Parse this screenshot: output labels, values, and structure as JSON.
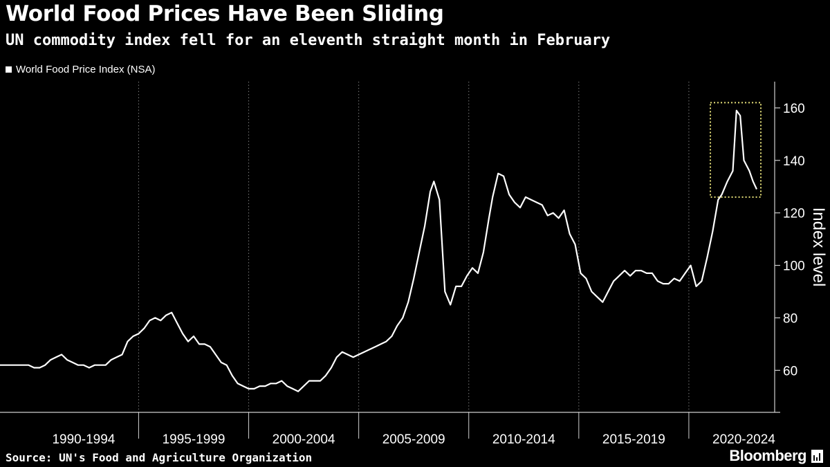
{
  "header": {
    "title": "World Food Prices Have Been Sliding",
    "subtitle": "UN commodity index fell for an eleventh straight month in February"
  },
  "legend": {
    "label": "World Food Price Index (NSA)"
  },
  "footer": {
    "source": "Source: UN's Food and Agriculture Organization",
    "brand": "Bloomberg"
  },
  "colors": {
    "background": "#000000",
    "line": "#ffffff",
    "highlight": "#e8e27a",
    "grid": "#7a7a7a"
  },
  "chart_data": {
    "type": "line",
    "title": "World Food Prices Have Been Sliding",
    "subtitle": "UN commodity index fell for an eleventh straight month in February",
    "ylabel": "Index level",
    "xlabel": "",
    "ylim": [
      44,
      170
    ],
    "xlim": [
      "1990-01",
      "2023-02"
    ],
    "y_ticks": [
      60,
      80,
      100,
      120,
      140,
      160
    ],
    "x_tick_labels": [
      "1990-1994",
      "1995-1999",
      "2000-2004",
      "2005-2009",
      "2010-2014",
      "2015-2019",
      "2020-2024"
    ],
    "grid": "vertical dotted at period boundaries",
    "legend_position": "top-left",
    "highlight": {
      "type": "dotted box",
      "x_range": [
        "2021-03",
        "2023-02"
      ],
      "y_range": [
        126,
        162
      ]
    },
    "series": [
      {
        "name": "World Food Price Index (NSA)",
        "points": [
          [
            "1990-01",
            62
          ],
          [
            "1990-04",
            61
          ],
          [
            "1990-07",
            61
          ],
          [
            "1990-10",
            62
          ],
          [
            "1991-01",
            64
          ],
          [
            "1991-04",
            65
          ],
          [
            "1991-07",
            66
          ],
          [
            "1991-10",
            64
          ],
          [
            "1992-01",
            63
          ],
          [
            "1992-04",
            62
          ],
          [
            "1992-07",
            62
          ],
          [
            "1992-10",
            61
          ],
          [
            "1993-01",
            62
          ],
          [
            "1993-04",
            62
          ],
          [
            "1993-07",
            62
          ],
          [
            "1993-10",
            64
          ],
          [
            "1994-01",
            65
          ],
          [
            "1994-04",
            66
          ],
          [
            "1994-07",
            71
          ],
          [
            "1994-10",
            73
          ],
          [
            "1995-01",
            74
          ],
          [
            "1995-04",
            76
          ],
          [
            "1995-07",
            79
          ],
          [
            "1995-10",
            80
          ],
          [
            "1996-01",
            79
          ],
          [
            "1996-04",
            81
          ],
          [
            "1996-07",
            82
          ],
          [
            "1996-10",
            78
          ],
          [
            "1997-01",
            74
          ],
          [
            "1997-04",
            71
          ],
          [
            "1997-07",
            73
          ],
          [
            "1997-10",
            70
          ],
          [
            "1998-01",
            70
          ],
          [
            "1998-04",
            69
          ],
          [
            "1998-07",
            66
          ],
          [
            "1998-10",
            63
          ],
          [
            "1999-01",
            62
          ],
          [
            "1999-04",
            58
          ],
          [
            "1999-07",
            55
          ],
          [
            "1999-10",
            54
          ],
          [
            "2000-01",
            53
          ],
          [
            "2000-04",
            53
          ],
          [
            "2000-07",
            54
          ],
          [
            "2000-10",
            54
          ],
          [
            "2001-01",
            55
          ],
          [
            "2001-04",
            55
          ],
          [
            "2001-07",
            56
          ],
          [
            "2001-10",
            54
          ],
          [
            "2002-01",
            53
          ],
          [
            "2002-04",
            52
          ],
          [
            "2002-07",
            54
          ],
          [
            "2002-10",
            56
          ],
          [
            "2003-01",
            56
          ],
          [
            "2003-04",
            56
          ],
          [
            "2003-07",
            58
          ],
          [
            "2003-10",
            61
          ],
          [
            "2004-01",
            65
          ],
          [
            "2004-04",
            67
          ],
          [
            "2004-07",
            66
          ],
          [
            "2004-10",
            65
          ],
          [
            "2005-01",
            66
          ],
          [
            "2005-04",
            67
          ],
          [
            "2005-07",
            68
          ],
          [
            "2005-10",
            69
          ],
          [
            "2006-01",
            70
          ],
          [
            "2006-04",
            71
          ],
          [
            "2006-07",
            73
          ],
          [
            "2006-10",
            77
          ],
          [
            "2007-01",
            80
          ],
          [
            "2007-04",
            86
          ],
          [
            "2007-07",
            95
          ],
          [
            "2007-10",
            105
          ],
          [
            "2008-01",
            115
          ],
          [
            "2008-04",
            128
          ],
          [
            "2008-06",
            132
          ],
          [
            "2008-09",
            125
          ],
          [
            "2008-12",
            90
          ],
          [
            "2009-03",
            85
          ],
          [
            "2009-06",
            92
          ],
          [
            "2009-09",
            92
          ],
          [
            "2009-12",
            96
          ],
          [
            "2010-03",
            99
          ],
          [
            "2010-06",
            97
          ],
          [
            "2010-09",
            105
          ],
          [
            "2010-12",
            118
          ],
          [
            "2011-02",
            126
          ],
          [
            "2011-05",
            135
          ],
          [
            "2011-08",
            134
          ],
          [
            "2011-11",
            127
          ],
          [
            "2012-02",
            124
          ],
          [
            "2012-05",
            122
          ],
          [
            "2012-08",
            126
          ],
          [
            "2012-11",
            125
          ],
          [
            "2013-02",
            124
          ],
          [
            "2013-05",
            123
          ],
          [
            "2013-08",
            119
          ],
          [
            "2013-11",
            120
          ],
          [
            "2014-02",
            118
          ],
          [
            "2014-05",
            121
          ],
          [
            "2014-08",
            112
          ],
          [
            "2014-11",
            108
          ],
          [
            "2015-02",
            97
          ],
          [
            "2015-05",
            95
          ],
          [
            "2015-08",
            90
          ],
          [
            "2015-11",
            88
          ],
          [
            "2016-02",
            86
          ],
          [
            "2016-05",
            90
          ],
          [
            "2016-08",
            94
          ],
          [
            "2016-11",
            96
          ],
          [
            "2017-02",
            98
          ],
          [
            "2017-05",
            96
          ],
          [
            "2017-08",
            98
          ],
          [
            "2017-11",
            98
          ],
          [
            "2018-02",
            97
          ],
          [
            "2018-05",
            97
          ],
          [
            "2018-08",
            94
          ],
          [
            "2018-11",
            93
          ],
          [
            "2019-02",
            93
          ],
          [
            "2019-05",
            95
          ],
          [
            "2019-08",
            94
          ],
          [
            "2019-11",
            97
          ],
          [
            "2020-02",
            100
          ],
          [
            "2020-05",
            92
          ],
          [
            "2020-08",
            94
          ],
          [
            "2020-11",
            103
          ],
          [
            "2021-02",
            113
          ],
          [
            "2021-05",
            125
          ],
          [
            "2021-07",
            127
          ],
          [
            "2021-10",
            132
          ],
          [
            "2022-01",
            136
          ],
          [
            "2022-03",
            159
          ],
          [
            "2022-05",
            157
          ],
          [
            "2022-07",
            140
          ],
          [
            "2022-10",
            136
          ],
          [
            "2022-12",
            132
          ],
          [
            "2023-02",
            129
          ]
        ]
      }
    ]
  }
}
